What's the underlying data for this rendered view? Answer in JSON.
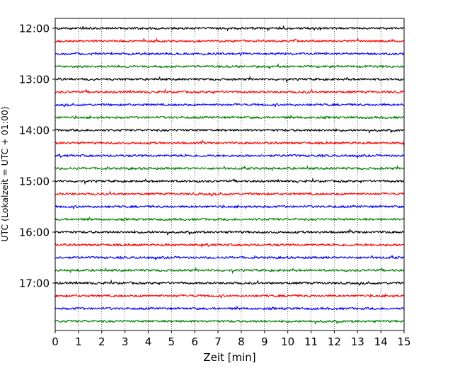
{
  "chart_data": {
    "type": "line",
    "title": "",
    "xlabel": "Zeit  [min]",
    "ylabel": "UTC (Lokalzeit = UTC + 01:00)",
    "xlim": [
      0,
      15
    ],
    "x_ticks": [
      "0",
      "1",
      "2",
      "3",
      "4",
      "5",
      "6",
      "7",
      "8",
      "9",
      "10",
      "11",
      "12",
      "13",
      "14",
      "15"
    ],
    "y_ticks": [
      "12:00",
      "13:00",
      "14:00",
      "15:00",
      "16:00",
      "17:00"
    ],
    "grid": "vertical dotted lines at each minute",
    "trace_interval_minutes": 15,
    "trace_colors": [
      "#000000",
      "#ff0000",
      "#0000ff",
      "#008000"
    ],
    "traces": [
      "12:00",
      "12:15",
      "12:30",
      "12:45",
      "13:00",
      "13:15",
      "13:30",
      "13:45",
      "14:00",
      "14:15",
      "14:30",
      "14:45",
      "15:00",
      "15:15",
      "15:30",
      "15:45",
      "16:00",
      "16:15",
      "16:30",
      "16:45",
      "17:00",
      "17:15",
      "17:30",
      "17:45"
    ]
  }
}
